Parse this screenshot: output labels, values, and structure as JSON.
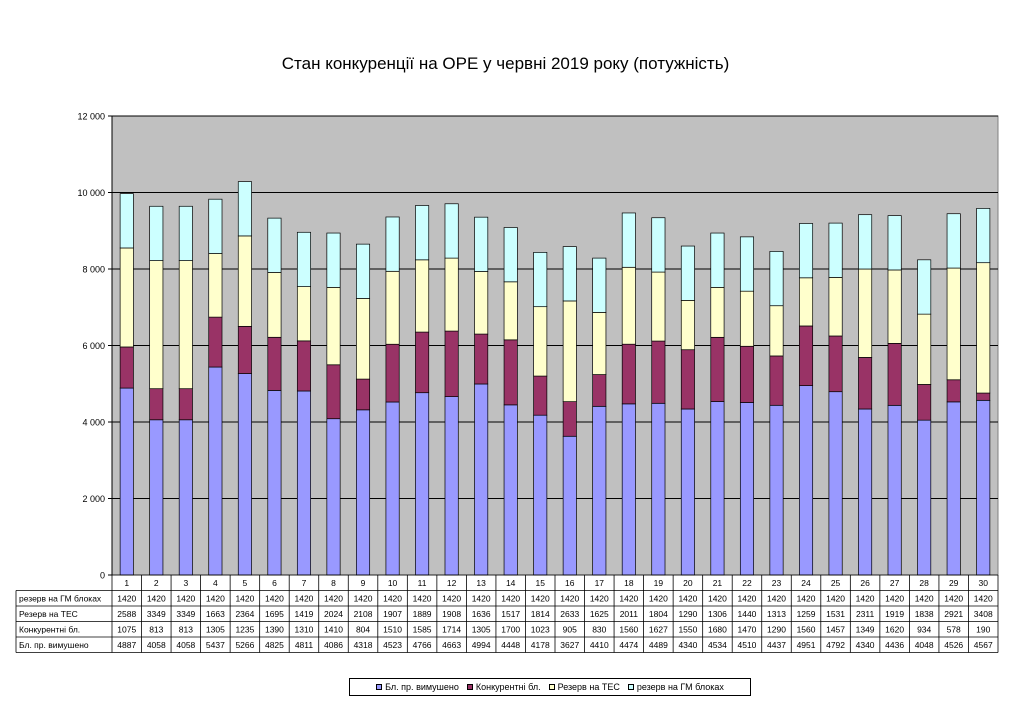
{
  "chart_data": {
    "type": "bar",
    "stacked": true,
    "title": "Стан конкуренції на ОРЕ  у червні 2019 року (потужність)",
    "categories": [
      "1",
      "2",
      "3",
      "4",
      "5",
      "6",
      "7",
      "8",
      "9",
      "10",
      "11",
      "12",
      "13",
      "14",
      "15",
      "16",
      "17",
      "18",
      "19",
      "20",
      "21",
      "22",
      "23",
      "24",
      "25",
      "26",
      "27",
      "28",
      "29",
      "30"
    ],
    "ylim": [
      0,
      12000
    ],
    "yticks": [
      "0",
      "2 000",
      "4 000",
      "6 000",
      "8 000",
      "10 000",
      "12 000"
    ],
    "grid": true,
    "legend_position": "bottom",
    "series": [
      {
        "name": "Бл. пр. вимушено",
        "color": "#9999ff",
        "values": [
          4887,
          4058,
          4058,
          5437,
          5266,
          4825,
          4811,
          4086,
          4318,
          4523,
          4766,
          4663,
          4994,
          4448,
          4178,
          3627,
          4410,
          4474,
          4489,
          4340,
          4534,
          4510,
          4437,
          4951,
          4792,
          4340,
          4436,
          4048,
          4526,
          4567
        ]
      },
      {
        "name": "Конкурентні бл.",
        "color": "#993366",
        "values": [
          1075,
          813,
          813,
          1305,
          1235,
          1390,
          1310,
          1410,
          804,
          1510,
          1585,
          1714,
          1305,
          1700,
          1023,
          905,
          830,
          1560,
          1627,
          1550,
          1680,
          1470,
          1290,
          1560,
          1457,
          1349,
          1620,
          934,
          578,
          190
        ]
      },
      {
        "name": "Резерв на ТЕС",
        "color": "#ffffcc",
        "values": [
          2588,
          3349,
          3349,
          1663,
          2364,
          1695,
          1419,
          2024,
          2108,
          1907,
          1889,
          1908,
          1636,
          1517,
          1814,
          2633,
          1625,
          2011,
          1804,
          1290,
          1306,
          1440,
          1313,
          1259,
          1531,
          2311,
          1919,
          1838,
          2921,
          3408
        ]
      },
      {
        "name": "резерв на ГМ блоках",
        "color": "#ccffff",
        "values": [
          1420,
          1420,
          1420,
          1420,
          1420,
          1420,
          1420,
          1420,
          1420,
          1420,
          1420,
          1420,
          1420,
          1420,
          1420,
          1420,
          1420,
          1420,
          1420,
          1420,
          1420,
          1420,
          1420,
          1420,
          1420,
          1420,
          1420,
          1420,
          1420,
          1420
        ]
      }
    ],
    "table_row_order": [
      "резерв на ГМ блоках",
      "Резерв на ТЕС",
      "Конкурентні бл.",
      "Бл. пр. вимушено"
    ]
  },
  "colors": {
    "plot_background": "#c0c0c0",
    "gridline": "#000000"
  }
}
